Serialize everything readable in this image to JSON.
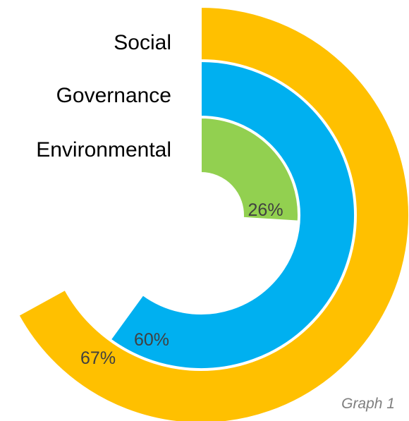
{
  "chart_data": {
    "type": "radial-bar",
    "series": [
      {
        "name": "Social",
        "value": 67,
        "label": "67%",
        "color": "#FFC000"
      },
      {
        "name": "Governance",
        "value": 60,
        "label": "60%",
        "color": "#00B0F0"
      },
      {
        "name": "Environmental",
        "value": 26,
        "label": "26%",
        "color": "#92D050"
      }
    ],
    "max": 100
  },
  "caption": "Graph 1"
}
